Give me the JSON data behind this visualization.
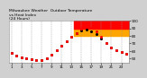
{
  "title": "Milwaukee Weather  Outdoor Temperature\nvs Heat Index\n(24 Hours)",
  "background_color": "#d0d0d0",
  "plot_bg": "#ffffff",
  "hours": [
    1,
    2,
    3,
    4,
    5,
    6,
    7,
    8,
    9,
    10,
    11,
    12,
    13,
    14,
    15,
    16,
    17,
    18,
    19,
    20,
    21,
    22,
    23,
    24
  ],
  "temp": [
    57,
    54,
    52,
    50,
    49,
    48,
    48,
    50,
    55,
    61,
    67,
    73,
    79,
    84,
    87,
    88,
    86,
    82,
    76,
    70,
    65,
    61,
    58,
    56
  ],
  "heat_index": [
    57,
    54,
    52,
    50,
    49,
    48,
    48,
    50,
    55,
    61,
    67,
    73,
    79,
    84,
    90,
    93,
    91,
    86,
    79,
    70,
    65,
    61,
    58,
    56
  ],
  "temp_color": "#000000",
  "heat_color": "#ff0000",
  "ylim": [
    44,
    100
  ],
  "xlim": [
    0.5,
    24.5
  ],
  "heat_bands": [
    {
      "ymin": 80,
      "ymax": 90,
      "color": "#ffa500",
      "alpha": 1.0
    },
    {
      "ymin": 90,
      "ymax": 100,
      "color": "#ff0000",
      "alpha": 1.0
    }
  ],
  "band_xmin": 13.5,
  "band_xmax": 24.5,
  "grid_positions": [
    1,
    3,
    5,
    7,
    9,
    11,
    13,
    15,
    17,
    19,
    21,
    23
  ],
  "grid_color": "#999999",
  "tick_fontsize": 3.0,
  "title_fontsize": 3.2,
  "marker_size": 1.2,
  "ytick_values": [
    50,
    60,
    70,
    80,
    90,
    100
  ],
  "ytick_labels": [
    "50",
    "60",
    "70",
    "80",
    "90",
    "100"
  ],
  "xtick_positions": [
    1,
    3,
    5,
    7,
    9,
    11,
    13,
    15,
    17,
    19,
    21,
    23
  ],
  "xtick_labels": [
    "1",
    "3",
    "5",
    "7",
    "9",
    "11",
    "13",
    "15",
    "17",
    "19",
    "21",
    "23"
  ]
}
